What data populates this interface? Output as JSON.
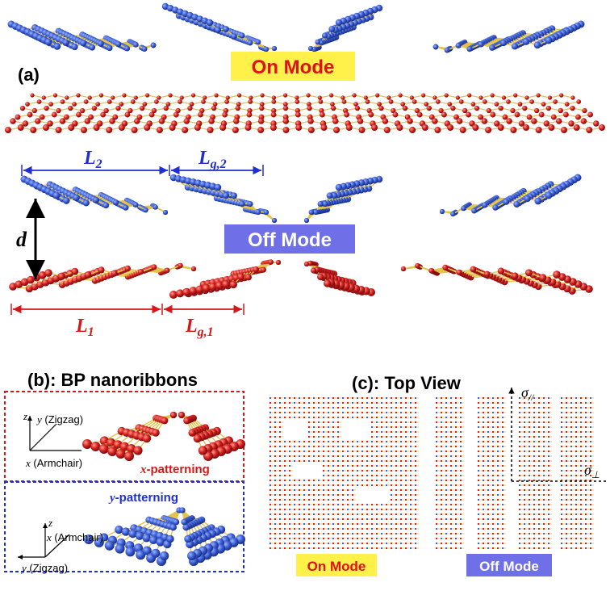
{
  "panel_a": {
    "label": "(a)",
    "on_mode": "On Mode",
    "off_mode": "Off Mode",
    "dims": {
      "l2_main": "L",
      "l2_sub": "2",
      "lg2_main": "L",
      "lg2_sub": "g,2",
      "d": "d",
      "l1_main": "L",
      "l1_sub": "1",
      "lg1_main": "L",
      "lg1_sub": "g,1"
    }
  },
  "panel_b": {
    "title": "(b): BP nanoribbons",
    "x_box": {
      "axis_z": "z",
      "axis_y": "y",
      "axis_y_note": " (Zigzag)",
      "axis_x": "x",
      "axis_x_note": " (Armchair)",
      "patterning_var": "x",
      "patterning_word": "-patterning"
    },
    "y_box": {
      "patterning_var": "y",
      "patterning_word": "-patterning",
      "axis_z": "z",
      "axis_x": "x",
      "axis_x_note": " (Armchair)",
      "axis_y": "y",
      "axis_y_note": " (Zigzag)"
    }
  },
  "panel_c": {
    "title": "(c): Top View",
    "on_mode": "On Mode",
    "off_mode": "Off Mode",
    "sigma_par_main": "σ",
    "sigma_par_sub": "//",
    "sigma_perp_main": "σ",
    "sigma_perp_sub": "⊥"
  },
  "colors": {
    "blue_atom": "#3a5fd6",
    "red_atom": "#d42020",
    "bond": "#e3c44a",
    "on_label_bg": "#fff04a",
    "on_label_fg": "#e0101a",
    "off_label_bg": "#6f6fe8",
    "off_label_fg": "#ffffff",
    "blue_text": "#1f2fd0",
    "red_text": "#d41818"
  }
}
